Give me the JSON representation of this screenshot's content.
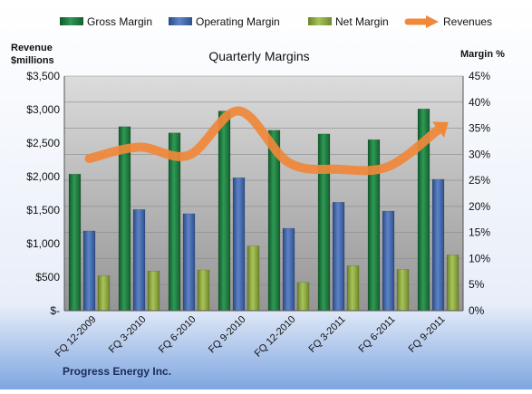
{
  "chart_data": {
    "type": "bar",
    "title": "Quarterly Margins",
    "footer": "Progress Energy Inc.",
    "left_axis_label_line1": "Revenue",
    "left_axis_label_line2": "$millions",
    "right_axis_label": "Margin %",
    "categories": [
      "FQ 12-2009",
      "FQ 3-2010",
      "FQ 6-2010",
      "FQ 9-2010",
      "FQ 12-2010",
      "FQ 3-2011",
      "FQ 6-2011",
      "FQ 9-2011"
    ],
    "left_ticks": [
      "$-",
      "$500",
      "$1,000",
      "$1,500",
      "$2,000",
      "$2,500",
      "$3,000",
      "$3,500"
    ],
    "right_ticks": [
      "0%",
      "5%",
      "10%",
      "15%",
      "20%",
      "25%",
      "30%",
      "35%",
      "40%",
      "45%"
    ],
    "ylim_left": [
      0,
      3500
    ],
    "ylim_right": [
      0,
      45
    ],
    "legend_position": "top",
    "series": [
      {
        "name": "Gross Margin",
        "axis": "right",
        "color": "#1e7a3e",
        "values": [
          26.2,
          35.3,
          34.1,
          38.3,
          34.6,
          33.9,
          32.8,
          38.7
        ]
      },
      {
        "name": "Operating Margin",
        "axis": "right",
        "color": "#3e62a8",
        "values": [
          15.3,
          19.4,
          18.6,
          25.5,
          15.8,
          20.8,
          19.1,
          25.2
        ]
      },
      {
        "name": "Net Margin",
        "axis": "right",
        "color": "#8aa63a",
        "values": [
          6.7,
          7.6,
          7.8,
          12.4,
          5.4,
          8.6,
          7.9,
          10.7
        ]
      },
      {
        "name": "Revenues",
        "axis": "left",
        "type": "line",
        "color": "#f0883a",
        "values": [
          2270,
          2440,
          2320,
          2980,
          2210,
          2110,
          2150,
          2700
        ]
      }
    ]
  }
}
